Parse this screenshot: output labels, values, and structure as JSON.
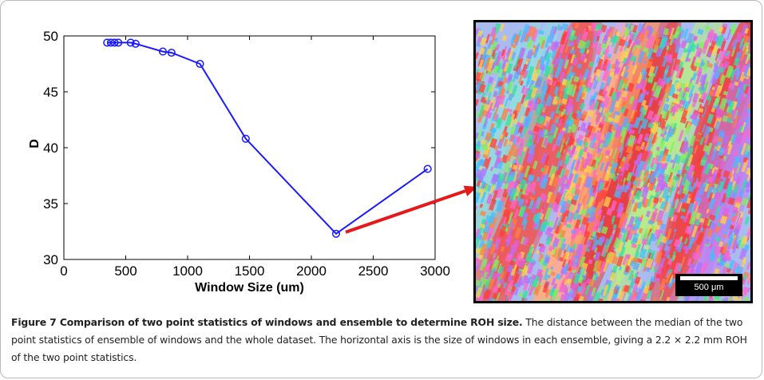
{
  "chart_data": {
    "type": "line",
    "xlabel": "Window Size (um)",
    "ylabel": "D",
    "xlim": [
      0,
      3000
    ],
    "ylim": [
      30,
      50
    ],
    "x_ticks": [
      0,
      500,
      1000,
      1500,
      2000,
      2500,
      3000
    ],
    "y_ticks": [
      30,
      35,
      40,
      45,
      50
    ],
    "grid": false,
    "marker": "circle",
    "line_color": "#1a1aff",
    "series": [
      {
        "x": [
          350,
          380,
          410,
          440,
          540,
          580,
          800,
          870,
          1100,
          1470,
          2200,
          2940
        ],
        "y": [
          49.4,
          49.4,
          49.4,
          49.4,
          49.4,
          49.3,
          48.6,
          48.5,
          47.5,
          40.8,
          32.3,
          38.1
        ]
      }
    ],
    "annotation": {
      "type": "arrow",
      "from_point_index": 10,
      "color": "#e41a1a",
      "target": "ebsd-image"
    }
  },
  "image": {
    "scale_bar_label": "500 μm"
  },
  "caption": {
    "title": "Figure 7 Comparison of two point statistics of windows and ensemble to determine ROH size.",
    "body": " The distance between the median of the two point statistics of ensemble of windows and the whole dataset. The horizontal axis is the size of windows in each ensemble, giving a 2.2 × 2.2 mm ROH of the two point statistics."
  }
}
